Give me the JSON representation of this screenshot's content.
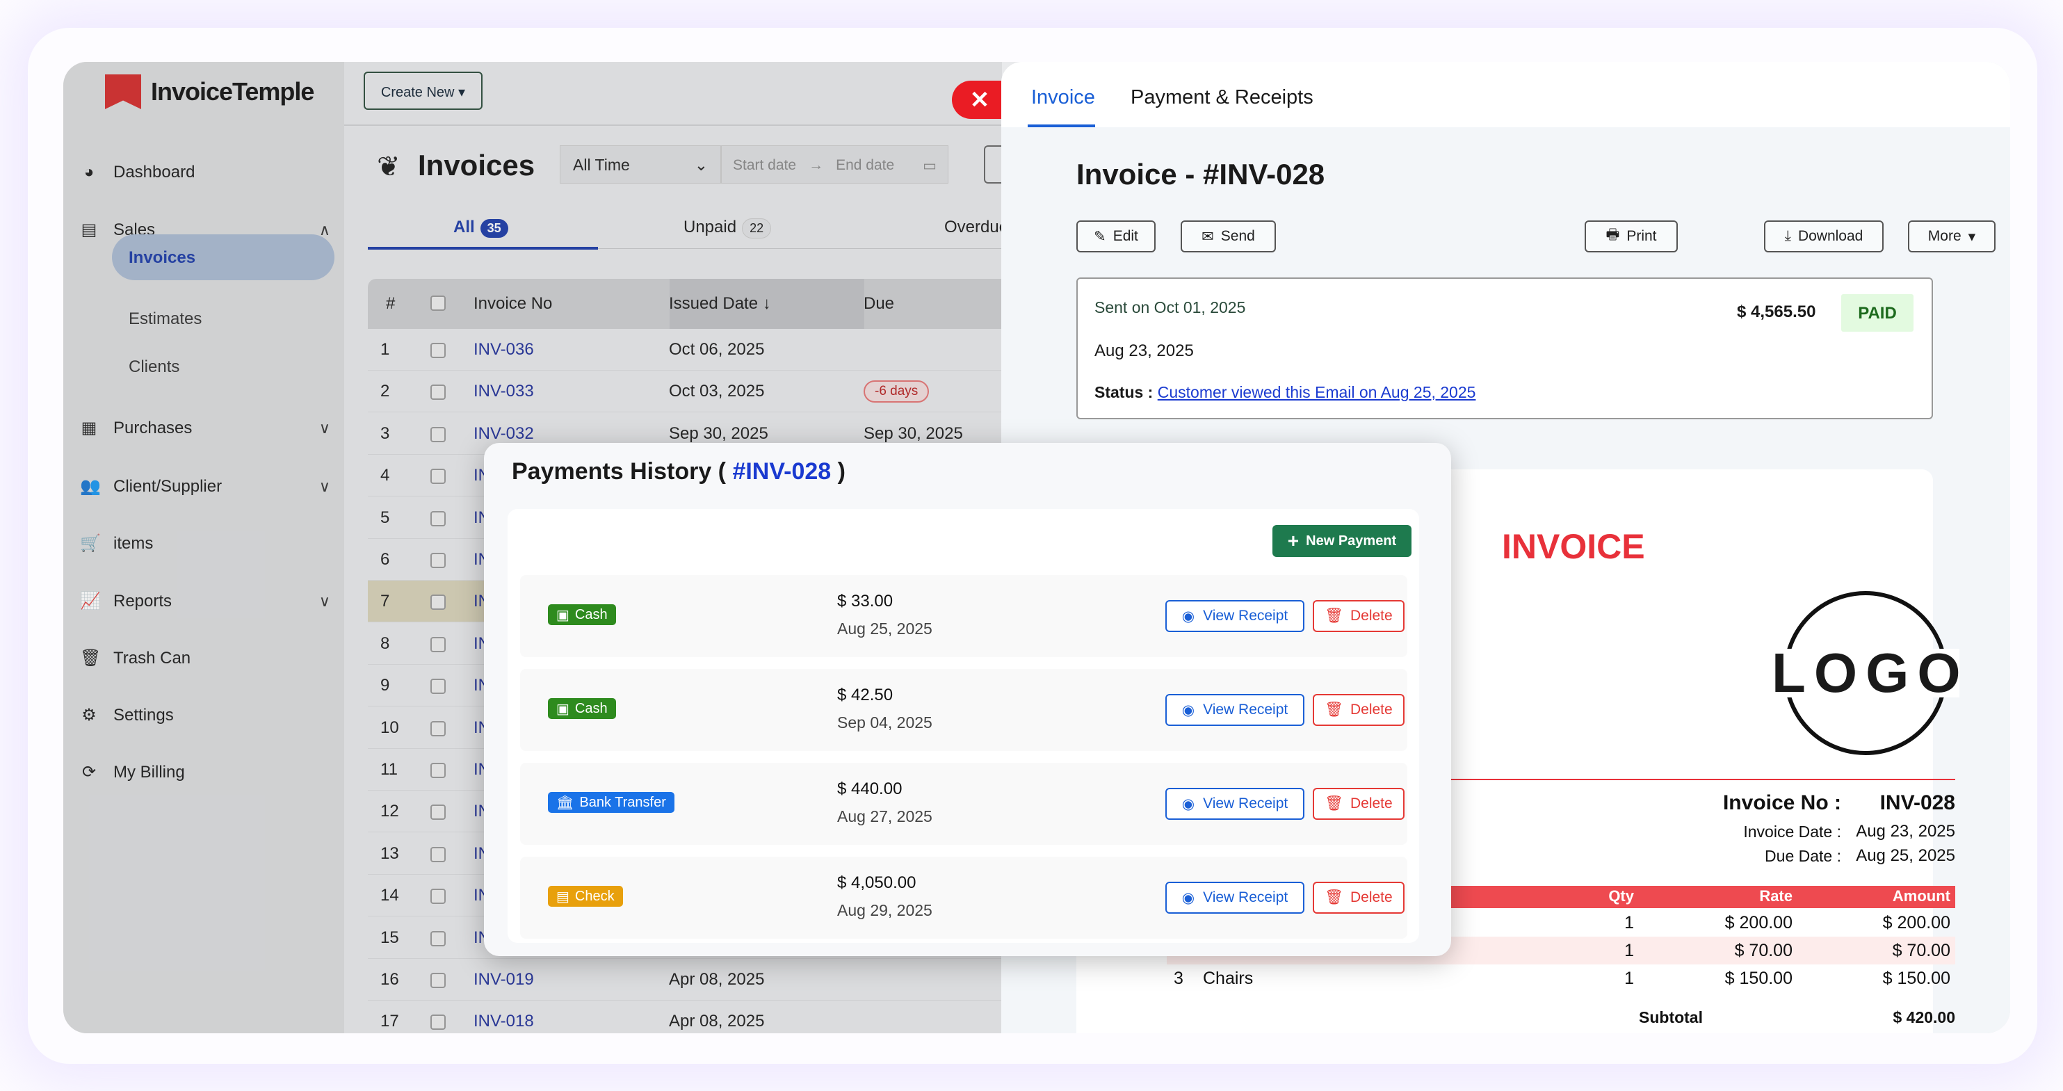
{
  "app": {
    "name": "InvoiceTemple",
    "create_new": "Create New ▾"
  },
  "sidebar": {
    "items": [
      {
        "label": "Dashboard",
        "icon": "dashboard-icon",
        "glyph": "◕"
      },
      {
        "label": "Sales",
        "icon": "sales-icon",
        "glyph": "▤",
        "chev": "∧"
      },
      {
        "label": "Purchases",
        "icon": "purchases-icon",
        "glyph": "▦",
        "chev": "∨"
      },
      {
        "label": "Client/Supplier",
        "icon": "users-icon",
        "glyph": "👥",
        "chev": "∨"
      },
      {
        "label": "items",
        "icon": "cart-icon",
        "glyph": "🛒"
      },
      {
        "label": "Reports",
        "icon": "chart-icon",
        "glyph": "📈",
        "chev": "∨"
      },
      {
        "label": "Trash Can",
        "icon": "trash-icon",
        "glyph": "🗑"
      },
      {
        "label": "Settings",
        "icon": "gear-icon",
        "glyph": "⚙"
      },
      {
        "label": "My Billing",
        "icon": "refresh-icon",
        "glyph": "⟳"
      }
    ],
    "sub": [
      "Invoices",
      "Estimates",
      "Clients"
    ]
  },
  "invoices": {
    "title": "Invoices",
    "range": "All Time",
    "start_placeholder": "Start date",
    "end_placeholder": "End date",
    "tabs": [
      {
        "label": "All",
        "count": "35"
      },
      {
        "label": "Unpaid",
        "count": "22"
      },
      {
        "label": "Overdue"
      }
    ],
    "columns": [
      "#",
      "Invoice No",
      "Issued Date ↓",
      "Due"
    ],
    "rows": [
      {
        "n": "1",
        "inv": "INV-036",
        "issued": "Oct 06, 2025",
        "due": ""
      },
      {
        "n": "2",
        "inv": "INV-033",
        "issued": "Oct 03, 2025",
        "due": "-6 days",
        "overdue": true
      },
      {
        "n": "3",
        "inv": "INV-032",
        "issued": "Sep 30, 2025",
        "due": "Sep 30, 2025"
      },
      {
        "n": "4",
        "inv": "IN"
      },
      {
        "n": "5",
        "inv": "IN"
      },
      {
        "n": "6",
        "inv": "IN"
      },
      {
        "n": "7",
        "inv": "IN",
        "highlight": true
      },
      {
        "n": "8",
        "inv": "IN"
      },
      {
        "n": "9",
        "inv": "IN"
      },
      {
        "n": "10",
        "inv": "IN"
      },
      {
        "n": "11",
        "inv": "IN"
      },
      {
        "n": "12",
        "inv": "IN"
      },
      {
        "n": "13",
        "inv": "IN"
      },
      {
        "n": "14",
        "inv": "IN"
      },
      {
        "n": "15",
        "inv": "IN"
      },
      {
        "n": "16",
        "inv": "INV-019",
        "issued": "Apr 08, 2025"
      },
      {
        "n": "17",
        "inv": "INV-018",
        "issued": "Apr 08, 2025"
      }
    ]
  },
  "close_label": "✕",
  "detail": {
    "tabs": [
      "Invoice",
      "Payment & Receipts"
    ],
    "title": "Invoice - #INV-028",
    "buttons": {
      "edit": "Edit",
      "send": "Send",
      "print": "Print",
      "download": "Download",
      "more": "More"
    },
    "sent_on": "Sent on Oct 01, 2025",
    "amount": "$ 4,565.50",
    "status_badge": "PAID",
    "date": "Aug 23, 2025",
    "status_label": "Status :",
    "status_link": "Customer viewed this Email on Aug 25, 2025"
  },
  "document": {
    "heading": "INVOICE",
    "logo": "LOGO",
    "invoice_no_label": "Invoice No :",
    "invoice_no": "INV-028",
    "invoice_date_label": "Invoice Date :",
    "invoice_date": "Aug 23, 2025",
    "due_date_label": "Due Date :",
    "due_date": "Aug 25, 2025",
    "columns": [
      "Qty",
      "Rate",
      "Amount"
    ],
    "items": [
      {
        "qty": "1",
        "rate": "$ 200.00",
        "amount": "$ 200.00"
      },
      {
        "qty": "1",
        "rate": "$ 70.00",
        "amount": "$ 70.00"
      },
      {
        "n": "3",
        "name": "Chairs",
        "qty": "1",
        "rate": "$ 150.00",
        "amount": "$ 150.00"
      }
    ],
    "subtotal_label": "Subtotal",
    "subtotal": "$ 420.00",
    "accent": "#e8313a"
  },
  "payments": {
    "title": "Payments History (",
    "invoice": "#INV-028",
    "title_end": ")",
    "new_payment": "New Payment",
    "view_receipt": "View Receipt",
    "delete": "Delete",
    "items": [
      {
        "method": "Cash",
        "color": "#2e8b1e",
        "icon": "cash-icon",
        "amount": "$ 33.00",
        "date": "Aug 25, 2025"
      },
      {
        "method": "Cash",
        "color": "#2e8b1e",
        "icon": "cash-icon",
        "amount": "$ 42.50",
        "date": "Sep 04, 2025"
      },
      {
        "method": "Bank Transfer",
        "color": "#1a73e8",
        "icon": "bank-icon",
        "amount": "$ 440.00",
        "date": "Aug 27, 2025"
      },
      {
        "method": "Check",
        "color": "#e8a00c",
        "icon": "check-icon",
        "amount": "$ 4,050.00",
        "date": "Aug 29, 2025"
      }
    ]
  }
}
